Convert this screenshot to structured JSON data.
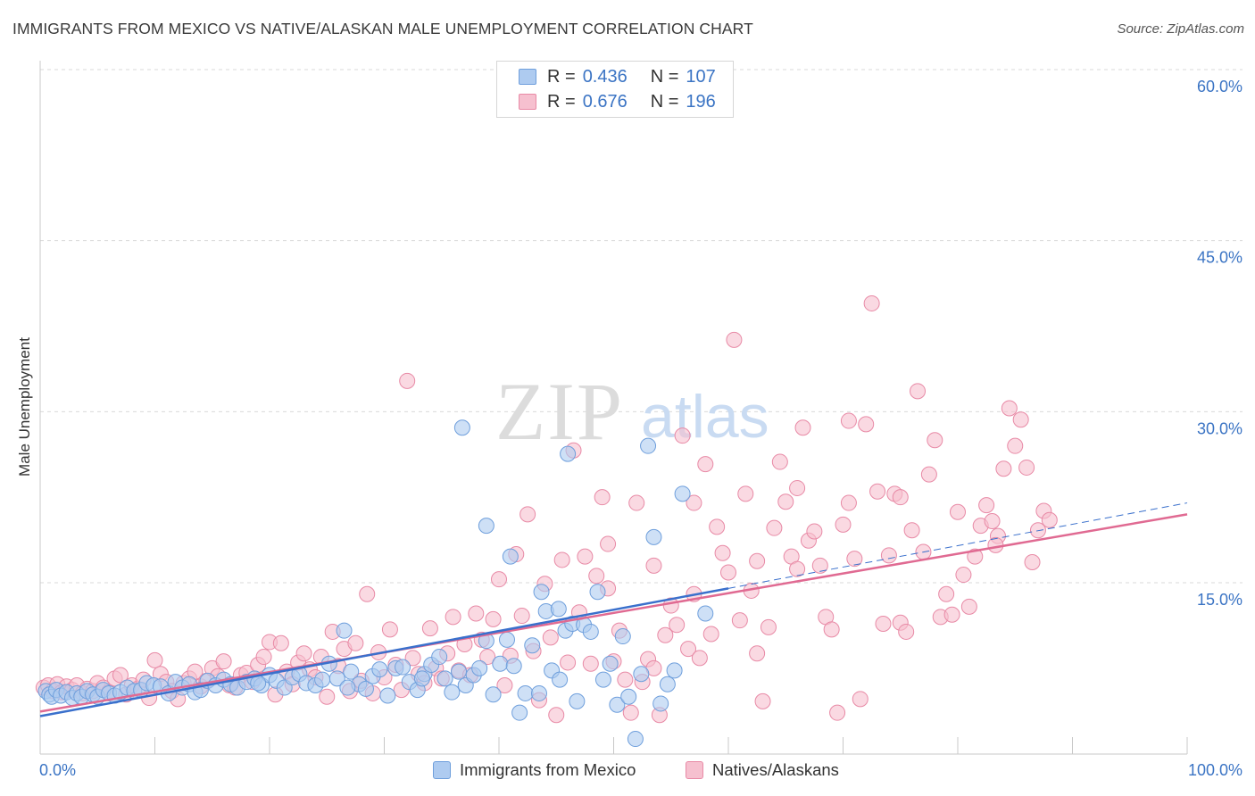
{
  "title": "IMMIGRANTS FROM MEXICO VS NATIVE/ALASKAN MALE UNEMPLOYMENT CORRELATION CHART",
  "source": "Source: ZipAtlas.com",
  "watermark": {
    "zip": "ZIP",
    "atlas": "atlas"
  },
  "legend": {
    "rows": [
      {
        "r_label": "R =",
        "r_value": "0.436",
        "n_label": "N =",
        "n_value": "107"
      },
      {
        "r_label": "R =",
        "r_value": "0.676",
        "n_label": "N =",
        "n_value": "196"
      }
    ]
  },
  "bottom_legend": {
    "series1": "Immigrants from Mexico",
    "series2": "Natives/Alaskans"
  },
  "colors": {
    "blue_fill": "#aecbf0",
    "blue_stroke": "#6f9fdc",
    "blue_line": "#3a70cc",
    "pink_fill": "#f6c0cf",
    "pink_stroke": "#e88aa6",
    "pink_line": "#e06a92",
    "tick_text": "#3b74c4",
    "grid": "#d9d9d9"
  },
  "chart_data": {
    "type": "scatter",
    "title": "IMMIGRANTS FROM MEXICO VS NATIVE/ALASKAN MALE UNEMPLOYMENT CORRELATION CHART",
    "xlabel": "",
    "ylabel": "Male Unemployment",
    "xlim": [
      0,
      100
    ],
    "ylim": [
      0,
      61
    ],
    "x_tick_labels": [
      "0.0%",
      "100.0%"
    ],
    "y_ticks": [
      15,
      30,
      45,
      60
    ],
    "y_tick_labels": [
      "15.0%",
      "30.0%",
      "45.0%",
      "60.0%"
    ],
    "grid": "horizontal dashed",
    "legend_position": "top-center",
    "series": [
      {
        "name": "Immigrants from Mexico",
        "R": 0.436,
        "N": 107,
        "trend": {
          "x": [
            0,
            60
          ],
          "y": [
            3.3,
            14.5
          ]
        },
        "trend_dashed": {
          "x": [
            60,
            100
          ],
          "y": [
            14.5,
            22.0
          ]
        },
        "points": [
          [
            0.5,
            5.5
          ],
          [
            0.8,
            5.2
          ],
          [
            1.0,
            5.0
          ],
          [
            1.4,
            5.6
          ],
          [
            1.8,
            5.1
          ],
          [
            2.3,
            5.4
          ],
          [
            2.8,
            4.9
          ],
          [
            3.2,
            5.3
          ],
          [
            3.6,
            5.0
          ],
          [
            4.1,
            5.5
          ],
          [
            4.6,
            5.2
          ],
          [
            5.0,
            5.0
          ],
          [
            5.5,
            5.6
          ],
          [
            6.0,
            5.3
          ],
          [
            6.5,
            5.1
          ],
          [
            7.0,
            5.4
          ],
          [
            7.6,
            5.8
          ],
          [
            8.2,
            5.5
          ],
          [
            8.8,
            5.6
          ],
          [
            9.3,
            6.2
          ],
          [
            9.9,
            6.0
          ],
          [
            10.5,
            5.9
          ],
          [
            11.2,
            5.3
          ],
          [
            11.8,
            6.3
          ],
          [
            12.4,
            5.8
          ],
          [
            13.0,
            6.1
          ],
          [
            13.5,
            5.4
          ],
          [
            14.0,
            5.6
          ],
          [
            14.6,
            6.4
          ],
          [
            15.3,
            6.0
          ],
          [
            16.0,
            6.5
          ],
          [
            16.6,
            6.1
          ],
          [
            17.2,
            5.8
          ],
          [
            18.0,
            6.3
          ],
          [
            18.7,
            6.6
          ],
          [
            19.3,
            6.0
          ],
          [
            20.0,
            6.9
          ],
          [
            20.6,
            6.4
          ],
          [
            21.3,
            5.8
          ],
          [
            22.0,
            6.7
          ],
          [
            22.6,
            7.0
          ],
          [
            23.2,
            6.2
          ],
          [
            24.0,
            6.0
          ],
          [
            24.6,
            6.5
          ],
          [
            25.2,
            7.9
          ],
          [
            25.9,
            6.6
          ],
          [
            26.5,
            10.8
          ],
          [
            27.1,
            7.2
          ],
          [
            27.8,
            6.1
          ],
          [
            28.4,
            5.7
          ],
          [
            29.0,
            6.8
          ],
          [
            29.6,
            7.4
          ],
          [
            30.3,
            5.1
          ],
          [
            31.0,
            7.5
          ],
          [
            31.6,
            7.6
          ],
          [
            32.2,
            6.3
          ],
          [
            32.9,
            5.6
          ],
          [
            33.5,
            7.0
          ],
          [
            34.1,
            7.8
          ],
          [
            34.8,
            8.5
          ],
          [
            35.3,
            6.6
          ],
          [
            35.9,
            5.4
          ],
          [
            36.5,
            7.2
          ],
          [
            37.1,
            6.0
          ],
          [
            37.8,
            6.9
          ],
          [
            38.3,
            7.5
          ],
          [
            38.9,
            9.9
          ],
          [
            39.5,
            5.2
          ],
          [
            40.1,
            7.9
          ],
          [
            40.7,
            10.0
          ],
          [
            41.3,
            7.7
          ],
          [
            41.8,
            3.6
          ],
          [
            42.3,
            5.3
          ],
          [
            42.9,
            9.5
          ],
          [
            43.5,
            5.3
          ],
          [
            44.1,
            12.5
          ],
          [
            44.6,
            7.3
          ],
          [
            45.2,
            12.7
          ],
          [
            45.8,
            10.8
          ],
          [
            46.4,
            11.4
          ],
          [
            46.8,
            4.6
          ],
          [
            47.4,
            11.3
          ],
          [
            48.0,
            10.7
          ],
          [
            48.6,
            14.2
          ],
          [
            49.1,
            6.5
          ],
          [
            49.7,
            7.9
          ],
          [
            50.3,
            4.3
          ],
          [
            50.8,
            10.3
          ],
          [
            51.3,
            5.0
          ],
          [
            51.9,
            1.3
          ],
          [
            52.4,
            7.0
          ],
          [
            53.0,
            27.0
          ],
          [
            53.5,
            19.0
          ],
          [
            54.1,
            4.4
          ],
          [
            54.7,
            6.1
          ],
          [
            55.3,
            7.3
          ],
          [
            56.0,
            22.8
          ],
          [
            58.0,
            12.3
          ],
          [
            46.0,
            26.3
          ],
          [
            36.8,
            28.6
          ],
          [
            38.9,
            20.0
          ],
          [
            41.0,
            17.3
          ],
          [
            43.7,
            14.2
          ],
          [
            45.3,
            6.5
          ],
          [
            33.3,
            6.6
          ],
          [
            26.8,
            5.8
          ],
          [
            19.0,
            6.2
          ]
        ]
      },
      {
        "name": "Natives/Alaskans",
        "R": 0.676,
        "N": 196,
        "trend": {
          "x": [
            0,
            100
          ],
          "y": [
            3.7,
            21.0
          ]
        },
        "points": [
          [
            0.3,
            5.8
          ],
          [
            0.7,
            6.0
          ],
          [
            1.1,
            5.5
          ],
          [
            1.5,
            6.1
          ],
          [
            1.9,
            5.4
          ],
          [
            2.3,
            5.9
          ],
          [
            2.8,
            5.6
          ],
          [
            3.2,
            6.0
          ],
          [
            3.7,
            5.3
          ],
          [
            4.1,
            5.7
          ],
          [
            4.6,
            5.5
          ],
          [
            5.0,
            6.2
          ],
          [
            5.5,
            5.8
          ],
          [
            6.0,
            5.4
          ],
          [
            6.5,
            6.6
          ],
          [
            7.0,
            6.9
          ],
          [
            7.5,
            5.2
          ],
          [
            8.0,
            6.0
          ],
          [
            8.5,
            5.7
          ],
          [
            9.0,
            6.5
          ],
          [
            9.5,
            4.9
          ],
          [
            10.0,
            8.2
          ],
          [
            10.5,
            7.0
          ],
          [
            11.0,
            6.3
          ],
          [
            11.5,
            5.5
          ],
          [
            12.0,
            4.8
          ],
          [
            12.5,
            6.2
          ],
          [
            13.0,
            6.6
          ],
          [
            13.5,
            7.2
          ],
          [
            14.0,
            5.9
          ],
          [
            14.5,
            6.4
          ],
          [
            15.0,
            7.5
          ],
          [
            15.5,
            6.8
          ],
          [
            16.0,
            8.1
          ],
          [
            16.5,
            6.0
          ],
          [
            17.0,
            5.8
          ],
          [
            17.5,
            6.9
          ],
          [
            18.0,
            7.1
          ],
          [
            18.5,
            6.3
          ],
          [
            19.0,
            7.8
          ],
          [
            19.5,
            8.5
          ],
          [
            20.0,
            9.8
          ],
          [
            20.5,
            5.2
          ],
          [
            21.0,
            9.7
          ],
          [
            21.5,
            7.2
          ],
          [
            22.0,
            6.1
          ],
          [
            22.5,
            8.0
          ],
          [
            23.0,
            8.8
          ],
          [
            23.5,
            7.4
          ],
          [
            24.0,
            6.7
          ],
          [
            24.5,
            8.5
          ],
          [
            25.0,
            5.0
          ],
          [
            25.5,
            10.7
          ],
          [
            26.0,
            7.7
          ],
          [
            26.5,
            9.2
          ],
          [
            27.0,
            5.5
          ],
          [
            27.5,
            9.7
          ],
          [
            28.0,
            6.4
          ],
          [
            28.5,
            14.0
          ],
          [
            29.0,
            5.3
          ],
          [
            29.5,
            8.9
          ],
          [
            30.0,
            6.7
          ],
          [
            30.5,
            10.9
          ],
          [
            31.0,
            7.8
          ],
          [
            31.5,
            5.6
          ],
          [
            32.0,
            32.7
          ],
          [
            32.5,
            8.4
          ],
          [
            33.0,
            7.0
          ],
          [
            33.5,
            6.2
          ],
          [
            34.0,
            11.0
          ],
          [
            34.5,
            7.5
          ],
          [
            35.0,
            6.6
          ],
          [
            35.5,
            8.8
          ],
          [
            36.0,
            12.0
          ],
          [
            36.5,
            7.3
          ],
          [
            37.0,
            9.6
          ],
          [
            37.5,
            6.9
          ],
          [
            38.0,
            12.3
          ],
          [
            38.5,
            10.0
          ],
          [
            39.0,
            8.5
          ],
          [
            39.5,
            11.8
          ],
          [
            40.0,
            15.3
          ],
          [
            40.5,
            6.0
          ],
          [
            41.0,
            8.6
          ],
          [
            41.5,
            17.5
          ],
          [
            42.0,
            12.1
          ],
          [
            42.5,
            21.0
          ],
          [
            43.0,
            9.0
          ],
          [
            43.5,
            4.7
          ],
          [
            44.0,
            14.9
          ],
          [
            44.5,
            10.2
          ],
          [
            45.0,
            3.4
          ],
          [
            45.5,
            17.0
          ],
          [
            46.0,
            8.0
          ],
          [
            46.5,
            26.6
          ],
          [
            47.0,
            12.4
          ],
          [
            47.5,
            17.3
          ],
          [
            48.0,
            7.9
          ],
          [
            48.5,
            15.6
          ],
          [
            49.0,
            22.5
          ],
          [
            49.5,
            14.5
          ],
          [
            50.0,
            8.1
          ],
          [
            50.5,
            10.8
          ],
          [
            51.0,
            6.5
          ],
          [
            51.5,
            3.6
          ],
          [
            52.0,
            22.0
          ],
          [
            52.5,
            6.3
          ],
          [
            53.0,
            8.3
          ],
          [
            53.5,
            7.5
          ],
          [
            54.0,
            3.4
          ],
          [
            54.5,
            10.4
          ],
          [
            55.0,
            13.0
          ],
          [
            55.5,
            11.3
          ],
          [
            56.0,
            27.9
          ],
          [
            56.5,
            9.2
          ],
          [
            57.0,
            14.0
          ],
          [
            57.5,
            8.4
          ],
          [
            58.0,
            25.4
          ],
          [
            58.5,
            10.5
          ],
          [
            59.0,
            19.9
          ],
          [
            59.5,
            17.6
          ],
          [
            60.0,
            15.9
          ],
          [
            60.5,
            36.3
          ],
          [
            61.0,
            11.7
          ],
          [
            61.5,
            22.8
          ],
          [
            62.0,
            14.3
          ],
          [
            62.5,
            8.8
          ],
          [
            63.0,
            4.6
          ],
          [
            63.5,
            11.1
          ],
          [
            64.0,
            19.8
          ],
          [
            64.5,
            25.6
          ],
          [
            65.0,
            22.1
          ],
          [
            65.5,
            17.3
          ],
          [
            66.0,
            23.3
          ],
          [
            66.5,
            28.6
          ],
          [
            67.0,
            18.7
          ],
          [
            67.5,
            19.5
          ],
          [
            68.0,
            16.5
          ],
          [
            68.5,
            12.0
          ],
          [
            69.0,
            10.9
          ],
          [
            69.5,
            3.6
          ],
          [
            70.0,
            20.1
          ],
          [
            70.5,
            29.2
          ],
          [
            71.0,
            17.1
          ],
          [
            71.5,
            4.8
          ],
          [
            72.0,
            28.9
          ],
          [
            72.5,
            39.5
          ],
          [
            73.0,
            23.0
          ],
          [
            73.5,
            11.4
          ],
          [
            74.0,
            17.4
          ],
          [
            74.5,
            22.8
          ],
          [
            75.0,
            11.5
          ],
          [
            75.5,
            10.7
          ],
          [
            76.0,
            19.6
          ],
          [
            76.5,
            31.8
          ],
          [
            77.0,
            17.7
          ],
          [
            77.5,
            24.5
          ],
          [
            78.0,
            27.5
          ],
          [
            78.5,
            12.0
          ],
          [
            79.0,
            14.0
          ],
          [
            79.5,
            12.2
          ],
          [
            80.0,
            21.2
          ],
          [
            80.5,
            15.7
          ],
          [
            81.0,
            12.9
          ],
          [
            81.5,
            17.3
          ],
          [
            82.0,
            20.0
          ],
          [
            82.5,
            21.8
          ],
          [
            83.0,
            20.4
          ],
          [
            83.5,
            19.1
          ],
          [
            84.0,
            25.0
          ],
          [
            84.5,
            30.3
          ],
          [
            85.0,
            27.0
          ],
          [
            85.5,
            29.3
          ],
          [
            86.0,
            25.1
          ],
          [
            86.5,
            16.8
          ],
          [
            87.0,
            19.6
          ],
          [
            87.5,
            21.3
          ],
          [
            88.0,
            20.5
          ],
          [
            83.3,
            18.3
          ],
          [
            75.0,
            22.5
          ],
          [
            70.5,
            22.0
          ],
          [
            66.0,
            16.2
          ],
          [
            62.5,
            16.9
          ],
          [
            57.0,
            22.0
          ],
          [
            53.5,
            16.5
          ],
          [
            49.5,
            18.4
          ]
        ]
      }
    ]
  }
}
